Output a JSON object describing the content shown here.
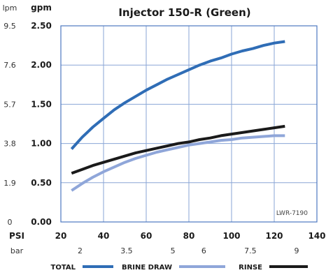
{
  "chart_data": {
    "type": "line",
    "title": "Injector 150-R (Green)",
    "code_label": "LWR-7190",
    "x_axis": {
      "label": "PSI",
      "range": [
        20,
        140
      ],
      "ticks": [
        20,
        40,
        60,
        80,
        100,
        120,
        140
      ],
      "secondary_label": "bar",
      "secondary_ticks": [
        {
          "at": 29,
          "label": "2"
        },
        {
          "at": 50.8,
          "label": "3.5"
        },
        {
          "at": 72.5,
          "label": "5"
        },
        {
          "at": 87,
          "label": "6"
        },
        {
          "at": 108.8,
          "label": "7.5"
        },
        {
          "at": 130.5,
          "label": "9"
        }
      ]
    },
    "y_axis": {
      "label": "gpm",
      "range": [
        0,
        2.5
      ],
      "ticks": [
        "0.00",
        "0.50",
        "1.00",
        "1.50",
        "2.00",
        "2.50"
      ],
      "secondary_label": "lpm",
      "secondary_ticks": [
        {
          "at": 0,
          "label": "0"
        },
        {
          "at": 0.5,
          "label": "1.9"
        },
        {
          "at": 1.0,
          "label": "3.8"
        },
        {
          "at": 1.5,
          "label": "5.7"
        },
        {
          "at": 2.0,
          "label": "7.6"
        },
        {
          "at": 2.5,
          "label": "9.5"
        }
      ]
    },
    "grid": true,
    "legend_position": "bottom",
    "series": [
      {
        "name": "TOTAL",
        "color": "#2f6db6",
        "x": [
          25,
          30,
          35,
          40,
          45,
          50,
          55,
          60,
          65,
          70,
          75,
          80,
          85,
          90,
          95,
          100,
          105,
          110,
          115,
          120,
          125
        ],
        "y": [
          0.93,
          1.08,
          1.21,
          1.32,
          1.43,
          1.52,
          1.6,
          1.68,
          1.75,
          1.82,
          1.88,
          1.94,
          2.0,
          2.05,
          2.09,
          2.14,
          2.18,
          2.21,
          2.25,
          2.28,
          2.3
        ]
      },
      {
        "name": "BRINE DRAW",
        "color": "#8fa6d9",
        "x": [
          25,
          30,
          35,
          40,
          45,
          50,
          55,
          60,
          65,
          70,
          75,
          80,
          85,
          90,
          95,
          100,
          105,
          110,
          115,
          120,
          125
        ],
        "y": [
          0.4,
          0.49,
          0.57,
          0.64,
          0.7,
          0.76,
          0.81,
          0.85,
          0.89,
          0.92,
          0.95,
          0.98,
          1.0,
          1.02,
          1.04,
          1.05,
          1.07,
          1.08,
          1.09,
          1.1,
          1.1
        ]
      },
      {
        "name": "RINSE",
        "color": "#1a1a1a",
        "x": [
          25,
          30,
          35,
          40,
          45,
          50,
          55,
          60,
          65,
          70,
          75,
          80,
          85,
          90,
          95,
          100,
          105,
          110,
          115,
          120,
          125
        ],
        "y": [
          0.62,
          0.67,
          0.72,
          0.76,
          0.8,
          0.84,
          0.88,
          0.91,
          0.94,
          0.97,
          1.0,
          1.02,
          1.05,
          1.07,
          1.1,
          1.12,
          1.14,
          1.16,
          1.18,
          1.2,
          1.22
        ]
      }
    ]
  }
}
